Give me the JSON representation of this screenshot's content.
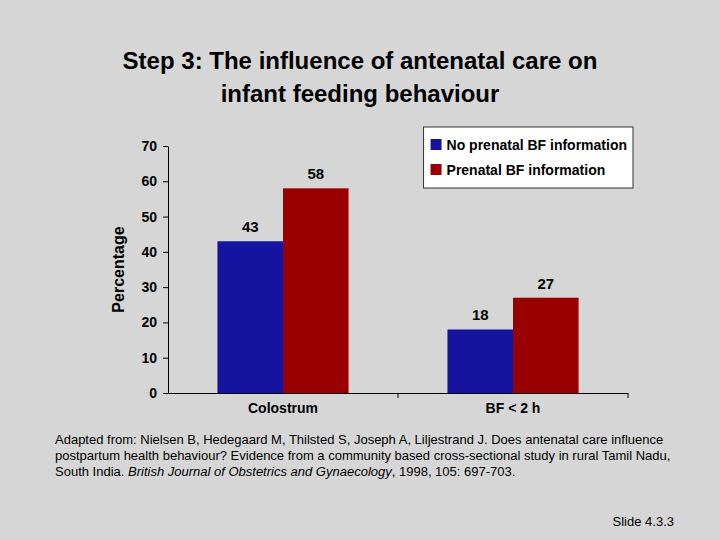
{
  "chart_data": {
    "type": "bar",
    "title": "Step 3: The influence of antenatal care on infant feeding behaviour",
    "ylabel": "Percentage",
    "categories": [
      "Colostrum",
      "BF < 2 h"
    ],
    "series": [
      {
        "name": "No prenatal BF information",
        "color": "#1414a0",
        "values": [
          43,
          18
        ]
      },
      {
        "name": "Prenatal BF information",
        "color": "#990000",
        "values": [
          58,
          27
        ]
      }
    ],
    "ylim": [
      0,
      70
    ],
    "yticks": [
      0,
      10,
      20,
      30,
      40,
      50,
      60,
      70
    ],
    "grid": false,
    "legend": "top-right",
    "data_labels": true,
    "source": {
      "text": "Adapted from: Nielsen B, Hedegaard M, Thilsted S, Joseph A, Liljestrand J. Does antenatal care influence postpartum health behaviour? Evidence from a community based cross-sectional study in rural Tamil Nadu, South India. British Journal of Obstetrics and Gynaecology, 1998, 105: 697-703.",
      "italic": "British Journal of Obstetrics and Gynaecology"
    },
    "footer": "Slide 4.3.3"
  }
}
